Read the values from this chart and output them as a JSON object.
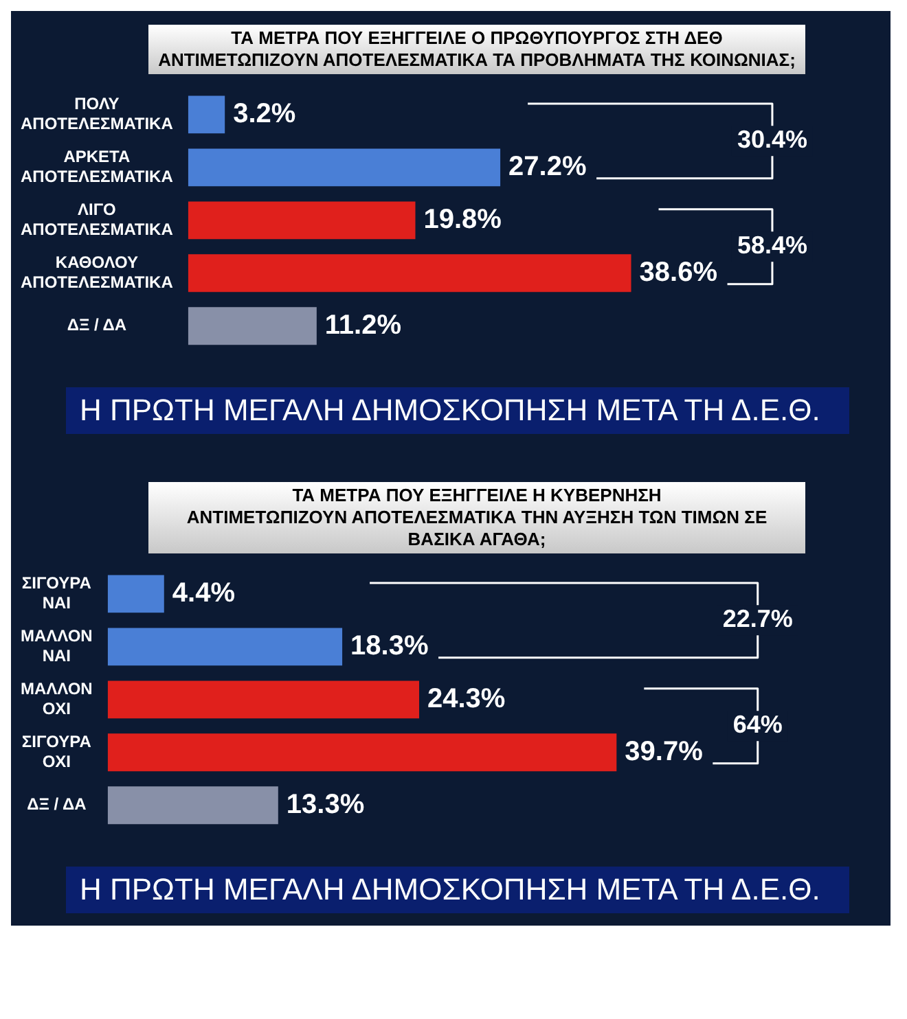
{
  "chart_data": [
    {
      "type": "bar",
      "orientation": "horizontal",
      "title": "ΤΑ ΜΕΤΡΑ ΠΟΥ ΕΞΗΓΓΕΙΛΕ Ο ΠΡΩΘΥΠΟΥΡΓΟΣ ΣΤΗ ΔΕΘ\nΑΝΤΙΜΕΤΩΠΙΖΟΥΝ ΑΠΟΤΕΛΕΣΜΑΤΙΚΑ ΤΑ ΠΡΟΒΛΗΜΑΤΑ ΤΗΣ ΚΟΙΝΩΝΙΑΣ;",
      "subtitle": "Η ΠΡΩΤΗ ΜΕΓΑΛΗ ΔΗΜΟΣΚΟΠΗΣΗ ΜΕΤΑ ΤΗ Δ.Ε.Θ.",
      "categories": [
        "ΠΟΛΥ ΑΠΟΤΕΛΕΣΜΑΤΙΚΑ",
        "ΑΡΚΕΤΑ ΑΠΟΤΕΛΕΣΜΑΤΙΚΑ",
        "ΛΙΓΟ ΑΠΟΤΕΛΕΣΜΑΤΙΚΑ",
        "ΚΑΘΟΛΟΥ ΑΠΟΤΕΛΕΣΜΑΤΙΚΑ",
        "ΔΞ / ΔΑ"
      ],
      "values": [
        3.2,
        27.2,
        19.8,
        38.6,
        11.2
      ],
      "colors": [
        "#4a7fd6",
        "#4a7fd6",
        "#e0201c",
        "#e0201c",
        "#8890a8"
      ],
      "value_labels": [
        "3.2%",
        "27.2%",
        "19.8%",
        "38.6%",
        "11.2%"
      ],
      "annotations": [
        "30.4%",
        "58.4%"
      ],
      "tick_labels": "y"
    },
    {
      "type": "bar",
      "orientation": "horizontal",
      "title": "ΤΑ ΜΕΤΡΑ ΠΟΥ ΕΞΗΓΓΕΙΛΕ Η ΚΥΒΕΡΝΗΣΗ\nΑΝΤΙΜΕΤΩΠΙΖΟΥΝ ΑΠΟΤΕΛΕΣΜΑΤΙΚΑ ΤΗΝ ΑΥΞΗΣΗ ΤΩΝ ΤΙΜΩΝ ΣΕ ΒΑΣΙΚΑ ΑΓΑΘΑ;",
      "subtitle": "Η ΠΡΩΤΗ ΜΕΓΑΛΗ ΔΗΜΟΣΚΟΠΗΣΗ ΜΕΤΑ ΤΗ Δ.Ε.Θ.",
      "categories": [
        "ΣΙΓΟΥΡΑ ΝΑΙ",
        "ΜΑΛΛΟΝ ΝΑΙ",
        "ΜΑΛΛΟΝ ΟΧΙ",
        "ΣΙΓΟΥΡΑ ΟΧΙ",
        "ΔΞ / ΔΑ"
      ],
      "values": [
        4.4,
        18.3,
        24.3,
        39.7,
        13.3
      ],
      "colors": [
        "#4a7fd6",
        "#4a7fd6",
        "#e0201c",
        "#e0201c",
        "#8890a8"
      ],
      "value_labels": [
        "4.4%",
        "18.3%",
        "24.3%",
        "39.7%",
        "13.3%"
      ],
      "annotations": [
        "22.7%",
        "64%"
      ],
      "tick_labels": "y"
    }
  ]
}
